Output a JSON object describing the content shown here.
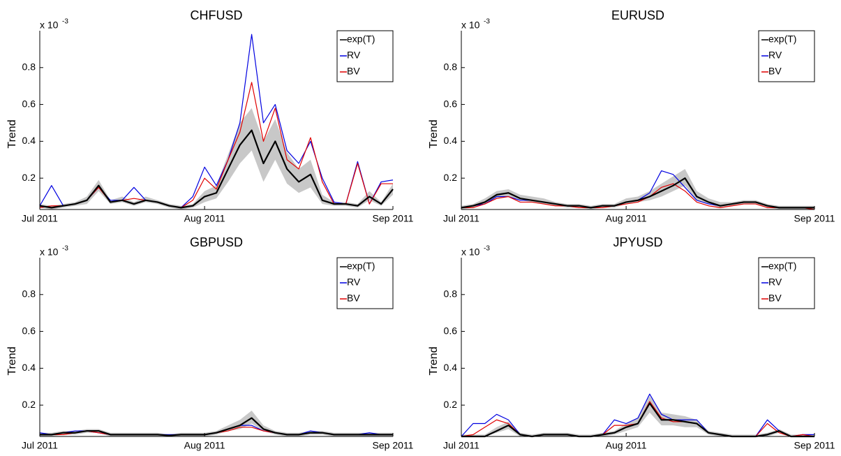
{
  "chart_data": [
    {
      "type": "line",
      "title": "CHFUSD",
      "y_label": "Trend",
      "y_multiplier": {
        "base": "x 10",
        "exponent": "-3"
      },
      "categories": [
        "Jul 2011",
        null,
        null,
        null,
        null,
        null,
        null,
        null,
        null,
        null,
        null,
        null,
        null,
        null,
        "Aug 2011",
        null,
        null,
        null,
        null,
        null,
        null,
        null,
        null,
        null,
        null,
        null,
        null,
        null,
        null,
        null,
        "Sep 2011"
      ],
      "ylim": [
        0.03,
        1.0
      ],
      "yticks": [
        0.2,
        0.4,
        0.6,
        0.8
      ],
      "legend": "upper right",
      "band": {
        "color": "#c8c8c8",
        "lower": [
          0.04,
          0.03,
          0.04,
          0.05,
          0.06,
          0.13,
          0.06,
          0.07,
          0.05,
          0.07,
          0.06,
          0.04,
          0.03,
          0.04,
          0.07,
          0.09,
          0.18,
          0.28,
          0.35,
          0.18,
          0.3,
          0.17,
          0.12,
          0.15,
          0.06,
          0.05,
          0.05,
          0.04,
          0.08,
          0.05,
          0.11
        ],
        "upper": [
          0.06,
          0.05,
          0.06,
          0.07,
          0.1,
          0.19,
          0.08,
          0.1,
          0.07,
          0.1,
          0.08,
          0.06,
          0.05,
          0.06,
          0.13,
          0.16,
          0.33,
          0.5,
          0.58,
          0.4,
          0.52,
          0.34,
          0.25,
          0.3,
          0.11,
          0.07,
          0.07,
          0.06,
          0.13,
          0.07,
          0.17
        ]
      },
      "series": [
        {
          "name": "exp(T)",
          "color": "#000000",
          "values": [
            0.05,
            0.04,
            0.05,
            0.06,
            0.08,
            0.16,
            0.07,
            0.08,
            0.06,
            0.08,
            0.07,
            0.05,
            0.04,
            0.05,
            0.1,
            0.12,
            0.25,
            0.38,
            0.46,
            0.28,
            0.4,
            0.25,
            0.18,
            0.22,
            0.08,
            0.06,
            0.06,
            0.05,
            0.1,
            0.06,
            0.14
          ]
        },
        {
          "name": "RV",
          "color": "#0000e0",
          "values": [
            0.05,
            0.16,
            0.05,
            0.06,
            0.08,
            0.15,
            0.08,
            0.08,
            0.15,
            0.08,
            0.07,
            0.05,
            0.04,
            0.1,
            0.26,
            0.16,
            0.3,
            0.5,
            0.98,
            0.5,
            0.6,
            0.35,
            0.28,
            0.4,
            0.2,
            0.07,
            0.06,
            0.29,
            0.06,
            0.18,
            0.19
          ]
        },
        {
          "name": "BV",
          "color": "#e00000",
          "values": [
            0.04,
            0.05,
            0.05,
            0.06,
            0.08,
            0.15,
            0.07,
            0.08,
            0.09,
            0.08,
            0.07,
            0.05,
            0.04,
            0.08,
            0.2,
            0.14,
            0.3,
            0.45,
            0.72,
            0.4,
            0.58,
            0.3,
            0.25,
            0.42,
            0.18,
            0.06,
            0.06,
            0.28,
            0.06,
            0.17,
            0.17
          ]
        }
      ]
    },
    {
      "type": "line",
      "title": "EURUSD",
      "y_label": "Trend",
      "y_multiplier": {
        "base": "x 10",
        "exponent": "-3"
      },
      "categories": [
        "Jul 2011",
        null,
        null,
        null,
        null,
        null,
        null,
        null,
        null,
        null,
        null,
        null,
        null,
        null,
        "Aug 2011",
        null,
        null,
        null,
        null,
        null,
        null,
        null,
        null,
        null,
        null,
        null,
        null,
        null,
        null,
        null,
        "Sep 2011"
      ],
      "ylim": [
        0.03,
        1.0
      ],
      "yticks": [
        0.2,
        0.4,
        0.6,
        0.8
      ],
      "legend": "upper right",
      "band": {
        "color": "#c8c8c8",
        "lower": [
          0.03,
          0.04,
          0.06,
          0.09,
          0.1,
          0.08,
          0.07,
          0.06,
          0.05,
          0.04,
          0.04,
          0.03,
          0.04,
          0.04,
          0.06,
          0.07,
          0.08,
          0.1,
          0.13,
          0.16,
          0.08,
          0.06,
          0.04,
          0.05,
          0.06,
          0.06,
          0.04,
          0.03,
          0.03,
          0.03,
          0.03
        ],
        "upper": [
          0.05,
          0.06,
          0.09,
          0.13,
          0.14,
          0.11,
          0.1,
          0.09,
          0.07,
          0.06,
          0.06,
          0.05,
          0.06,
          0.06,
          0.09,
          0.1,
          0.13,
          0.17,
          0.21,
          0.25,
          0.13,
          0.09,
          0.07,
          0.07,
          0.08,
          0.08,
          0.06,
          0.05,
          0.05,
          0.05,
          0.05
        ]
      },
      "series": [
        {
          "name": "exp(T)",
          "color": "#000000",
          "values": [
            0.04,
            0.05,
            0.07,
            0.11,
            0.12,
            0.09,
            0.08,
            0.07,
            0.06,
            0.05,
            0.05,
            0.04,
            0.05,
            0.05,
            0.07,
            0.08,
            0.1,
            0.13,
            0.16,
            0.2,
            0.1,
            0.07,
            0.05,
            0.06,
            0.07,
            0.07,
            0.05,
            0.04,
            0.04,
            0.04,
            0.04
          ]
        },
        {
          "name": "RV",
          "color": "#0000e0",
          "values": [
            0.04,
            0.05,
            0.06,
            0.1,
            0.1,
            0.08,
            0.08,
            0.07,
            0.06,
            0.05,
            0.05,
            0.04,
            0.05,
            0.05,
            0.07,
            0.08,
            0.12,
            0.24,
            0.22,
            0.15,
            0.08,
            0.06,
            0.05,
            0.06,
            0.07,
            0.07,
            0.05,
            0.04,
            0.04,
            0.04,
            0.04
          ]
        },
        {
          "name": "BV",
          "color": "#e00000",
          "values": [
            0.04,
            0.04,
            0.06,
            0.09,
            0.1,
            0.07,
            0.07,
            0.06,
            0.05,
            0.05,
            0.04,
            0.04,
            0.04,
            0.05,
            0.06,
            0.07,
            0.1,
            0.15,
            0.17,
            0.13,
            0.07,
            0.05,
            0.04,
            0.05,
            0.06,
            0.06,
            0.04,
            0.04,
            0.04,
            0.04,
            0.03
          ]
        }
      ]
    },
    {
      "type": "line",
      "title": "GBPUSD",
      "y_label": "Trend",
      "y_multiplier": {
        "base": "x 10",
        "exponent": "-3"
      },
      "categories": [
        "Jul 2011",
        null,
        null,
        null,
        null,
        null,
        null,
        null,
        null,
        null,
        null,
        null,
        null,
        null,
        "Aug 2011",
        null,
        null,
        null,
        null,
        null,
        null,
        null,
        null,
        null,
        null,
        null,
        null,
        null,
        null,
        null,
        "Sep 2011"
      ],
      "ylim": [
        0.03,
        1.0
      ],
      "yticks": [
        0.2,
        0.4,
        0.6,
        0.8
      ],
      "legend": "upper right",
      "band": {
        "color": "#c8c8c8",
        "lower": [
          0.03,
          0.03,
          0.04,
          0.04,
          0.05,
          0.05,
          0.03,
          0.03,
          0.03,
          0.03,
          0.03,
          0.03,
          0.03,
          0.03,
          0.03,
          0.04,
          0.06,
          0.07,
          0.1,
          0.06,
          0.04,
          0.03,
          0.03,
          0.04,
          0.04,
          0.03,
          0.03,
          0.03,
          0.03,
          0.03,
          0.03
        ],
        "upper": [
          0.05,
          0.05,
          0.06,
          0.06,
          0.07,
          0.07,
          0.05,
          0.05,
          0.05,
          0.05,
          0.05,
          0.04,
          0.05,
          0.05,
          0.05,
          0.06,
          0.09,
          0.12,
          0.17,
          0.09,
          0.06,
          0.05,
          0.05,
          0.06,
          0.06,
          0.05,
          0.05,
          0.05,
          0.05,
          0.05,
          0.05
        ]
      },
      "series": [
        {
          "name": "exp(T)",
          "color": "#000000",
          "values": [
            0.04,
            0.04,
            0.05,
            0.05,
            0.06,
            0.06,
            0.04,
            0.04,
            0.04,
            0.04,
            0.04,
            0.035,
            0.04,
            0.04,
            0.04,
            0.05,
            0.07,
            0.09,
            0.13,
            0.07,
            0.05,
            0.04,
            0.04,
            0.05,
            0.05,
            0.04,
            0.04,
            0.04,
            0.04,
            0.04,
            0.04
          ]
        },
        {
          "name": "RV",
          "color": "#0000e0",
          "values": [
            0.05,
            0.04,
            0.05,
            0.06,
            0.06,
            0.05,
            0.04,
            0.04,
            0.04,
            0.04,
            0.04,
            0.04,
            0.04,
            0.04,
            0.04,
            0.05,
            0.07,
            0.09,
            0.09,
            0.06,
            0.05,
            0.04,
            0.04,
            0.06,
            0.05,
            0.04,
            0.04,
            0.04,
            0.05,
            0.04,
            0.04
          ]
        },
        {
          "name": "BV",
          "color": "#e00000",
          "values": [
            0.04,
            0.04,
            0.04,
            0.05,
            0.06,
            0.05,
            0.04,
            0.04,
            0.04,
            0.04,
            0.04,
            0.035,
            0.04,
            0.04,
            0.04,
            0.05,
            0.06,
            0.08,
            0.08,
            0.06,
            0.05,
            0.04,
            0.04,
            0.05,
            0.05,
            0.04,
            0.04,
            0.04,
            0.04,
            0.04,
            0.04
          ]
        }
      ]
    },
    {
      "type": "line",
      "title": "JPYUSD",
      "y_label": "Trend",
      "y_multiplier": {
        "base": "x 10",
        "exponent": "-3"
      },
      "categories": [
        "Jul 2011",
        null,
        null,
        null,
        null,
        null,
        null,
        null,
        null,
        null,
        null,
        null,
        null,
        null,
        "Aug 2011",
        null,
        null,
        null,
        null,
        null,
        null,
        null,
        null,
        null,
        null,
        null,
        null,
        null,
        null,
        null,
        "Sep 2011"
      ],
      "ylim": [
        0.03,
        1.0
      ],
      "yticks": [
        0.2,
        0.4,
        0.6,
        0.8
      ],
      "legend": "upper right",
      "band": {
        "color": "#c8c8c8",
        "lower": [
          0.03,
          0.03,
          0.03,
          0.05,
          0.07,
          0.03,
          0.03,
          0.03,
          0.03,
          0.03,
          0.03,
          0.03,
          0.03,
          0.04,
          0.06,
          0.08,
          0.16,
          0.09,
          0.09,
          0.08,
          0.08,
          0.04,
          0.03,
          0.03,
          0.03,
          0.03,
          0.03,
          0.05,
          0.03,
          0.03,
          0.03
        ],
        "upper": [
          0.04,
          0.04,
          0.04,
          0.08,
          0.11,
          0.05,
          0.04,
          0.05,
          0.05,
          0.05,
          0.04,
          0.04,
          0.05,
          0.06,
          0.1,
          0.13,
          0.25,
          0.16,
          0.15,
          0.14,
          0.12,
          0.06,
          0.05,
          0.04,
          0.04,
          0.04,
          0.05,
          0.07,
          0.04,
          0.04,
          0.04
        ]
      },
      "series": [
        {
          "name": "exp(T)",
          "color": "#000000",
          "values": [
            0.03,
            0.03,
            0.03,
            0.06,
            0.09,
            0.04,
            0.03,
            0.04,
            0.04,
            0.04,
            0.03,
            0.03,
            0.04,
            0.05,
            0.08,
            0.1,
            0.21,
            0.12,
            0.12,
            0.11,
            0.1,
            0.05,
            0.04,
            0.03,
            0.03,
            0.03,
            0.04,
            0.06,
            0.03,
            0.03,
            0.03
          ]
        },
        {
          "name": "RV",
          "color": "#0000e0",
          "values": [
            0.03,
            0.1,
            0.1,
            0.15,
            0.12,
            0.04,
            0.03,
            0.04,
            0.04,
            0.04,
            0.03,
            0.03,
            0.04,
            0.12,
            0.1,
            0.13,
            0.26,
            0.15,
            0.12,
            0.12,
            0.12,
            0.05,
            0.04,
            0.03,
            0.03,
            0.03,
            0.12,
            0.06,
            0.03,
            0.04,
            0.04
          ]
        },
        {
          "name": "BV",
          "color": "#e00000",
          "values": [
            0.03,
            0.04,
            0.08,
            0.12,
            0.1,
            0.04,
            0.03,
            0.04,
            0.04,
            0.04,
            0.03,
            0.03,
            0.04,
            0.09,
            0.09,
            0.1,
            0.22,
            0.13,
            0.11,
            0.11,
            0.1,
            0.05,
            0.04,
            0.03,
            0.03,
            0.03,
            0.1,
            0.05,
            0.03,
            0.04,
            0.03
          ]
        }
      ]
    }
  ]
}
